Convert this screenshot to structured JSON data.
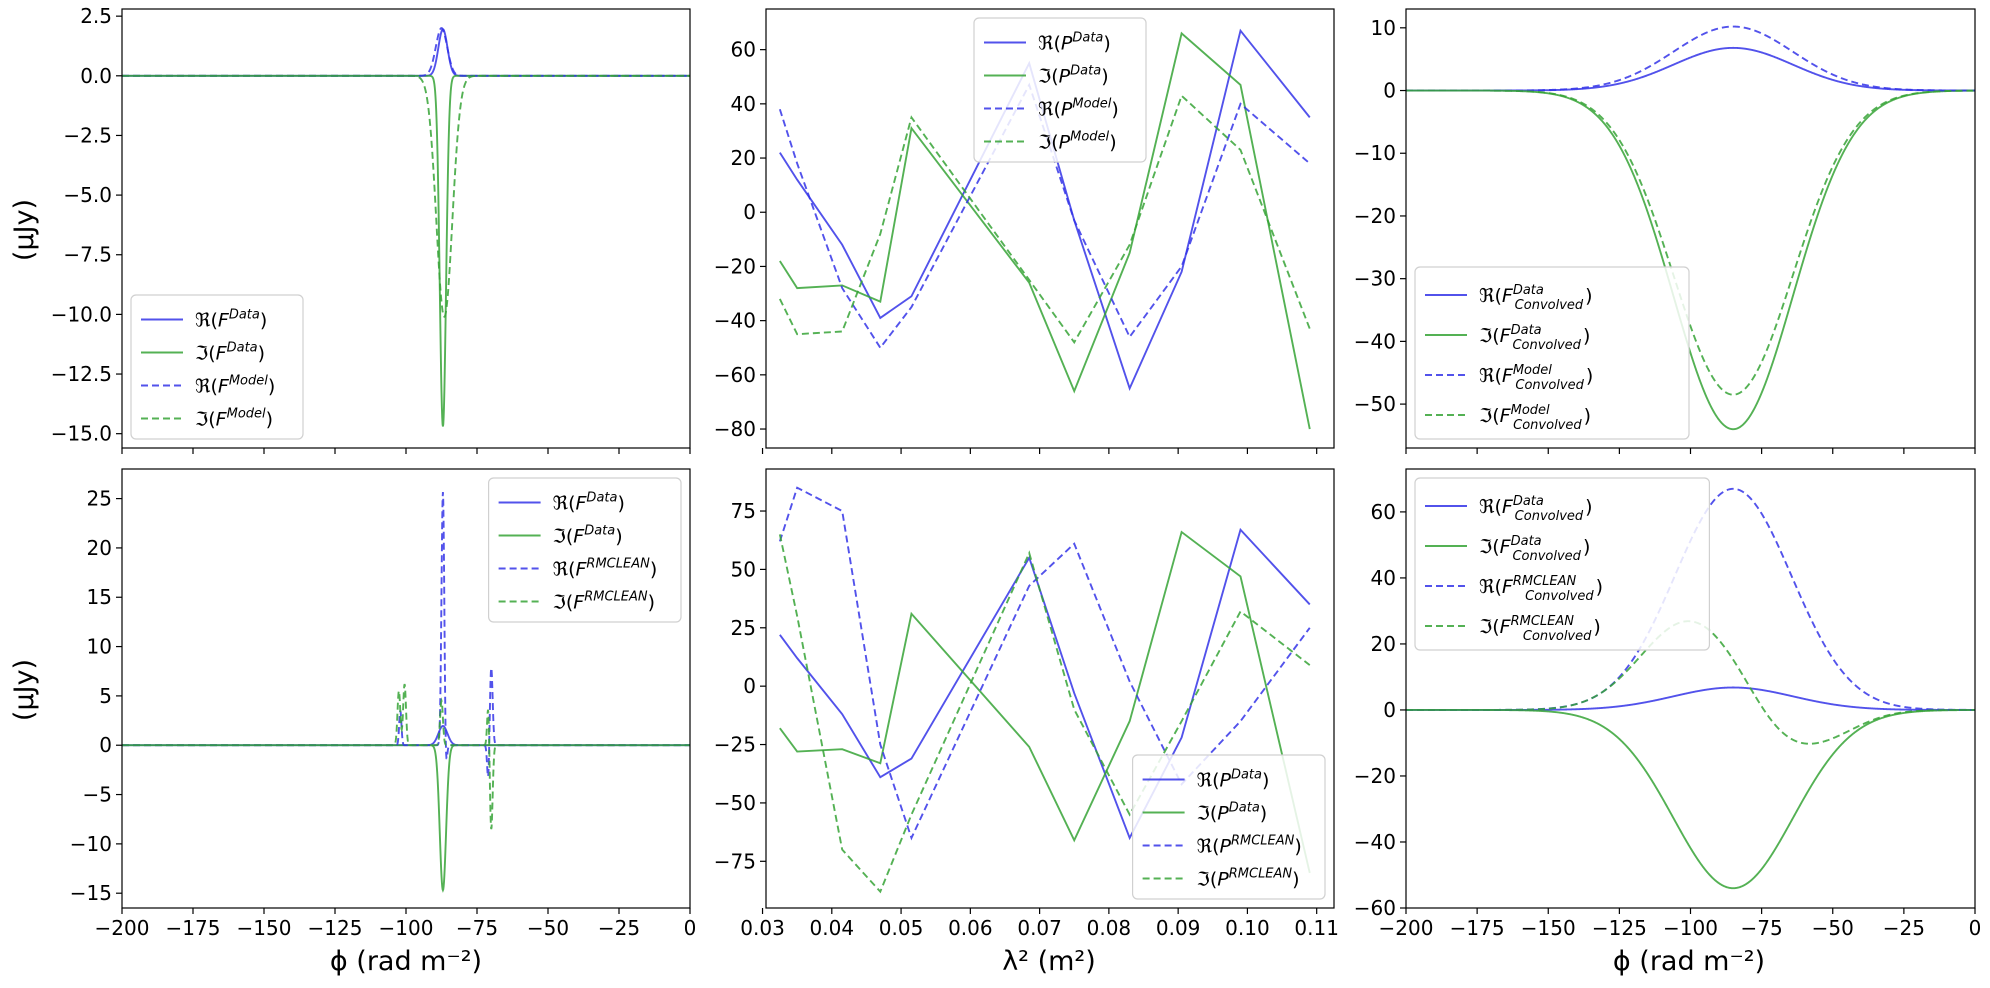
{
  "xlabels": {
    "phi": "ϕ (rad m⁻²)",
    "lambda2": "λ² (m²)"
  },
  "ylabel": "(μJy)",
  "colors": {
    "real": "#3434e8",
    "imag": "#36a336"
  },
  "chart_data": [
    {
      "type": "line",
      "id": "p1",
      "xlim": [
        -200,
        0
      ],
      "ylim": [
        -15.6,
        2.8
      ],
      "xticks": [
        -200,
        -175,
        -150,
        -125,
        -100,
        -75,
        -50,
        -25,
        0
      ],
      "yticks": [
        2.5,
        0,
        -2.5,
        -5,
        -7.5,
        -10,
        -12.5,
        -15
      ],
      "ytick_labels": [
        "2.5",
        "0.0",
        "−2.5",
        "−5.0",
        "−7.5",
        "−10.0",
        "−12.5",
        "−15.0"
      ],
      "legend": "lower-left",
      "series": [
        {
          "name": "ℜ(F^Data)",
          "color": "real",
          "dash": false,
          "peaks": [
            {
              "c": -87,
              "a": 1.95,
              "s": 1.6
            }
          ]
        },
        {
          "name": "ℑ(F^Data)",
          "color": "imag",
          "dash": false,
          "peaks": [
            {
              "c": -87,
              "a": -14.7,
              "s": 1.1
            }
          ]
        },
        {
          "name": "ℜ(F^Model)",
          "color": "real",
          "dash": true,
          "peaks": [
            {
              "c": -87.5,
              "a": 2.0,
              "s": 2.0
            }
          ]
        },
        {
          "name": "ℑ(F^Model)",
          "color": "imag",
          "dash": true,
          "peaks": [
            {
              "c": -86.5,
              "a": -10.1,
              "s": 2.8
            }
          ]
        }
      ]
    },
    {
      "type": "line",
      "id": "p2",
      "xlim": [
        0.0305,
        0.1125
      ],
      "ylim": [
        -87,
        75
      ],
      "xticks": [
        0.03,
        0.04,
        0.05,
        0.06,
        0.07,
        0.08,
        0.09,
        0.1,
        0.11
      ],
      "yticks": [
        60,
        40,
        20,
        0,
        -20,
        -40,
        -60,
        -80
      ],
      "legend": "upper-center",
      "x": [
        0.0325,
        0.035,
        0.0415,
        0.047,
        0.0515,
        0.0685,
        0.075,
        0.083,
        0.0905,
        0.099,
        0.109
      ],
      "series": [
        {
          "name": "ℜ(P^Data)",
          "color": "real",
          "dash": false,
          "values": [
            22,
            12,
            -12,
            -39,
            -31,
            55,
            -3,
            -65,
            -22,
            67,
            35
          ]
        },
        {
          "name": "ℑ(P^Data)",
          "color": "imag",
          "dash": false,
          "values": [
            -18,
            -28,
            -27,
            -33,
            31,
            -26,
            -66,
            -15,
            66,
            47,
            -80
          ]
        },
        {
          "name": "ℜ(P^Model)",
          "color": "real",
          "dash": true,
          "values": [
            38,
            18,
            -28,
            -50,
            -35,
            47,
            -3,
            -46,
            -20,
            40,
            18
          ]
        },
        {
          "name": "ℑ(P^Model)",
          "color": "imag",
          "dash": true,
          "values": [
            -32,
            -45,
            -44,
            -8,
            35,
            -25,
            -48,
            -12,
            43,
            23,
            -43
          ]
        }
      ]
    },
    {
      "type": "line",
      "id": "p3",
      "xlim": [
        -200,
        0
      ],
      "ylim": [
        -57,
        13
      ],
      "xticks": [
        -200,
        -175,
        -150,
        -125,
        -100,
        -75,
        -50,
        -25,
        0
      ],
      "yticks": [
        10,
        0,
        -10,
        -20,
        -30,
        -40,
        -50
      ],
      "legend": "lower-left",
      "series": [
        {
          "name": "ℜ(F^Data_Convolved)",
          "color": "real",
          "dash": false,
          "peaks": [
            {
              "c": -85,
              "a": 6.8,
              "s": 21
            }
          ]
        },
        {
          "name": "ℑ(F^Data_Convolved)",
          "color": "imag",
          "dash": false,
          "peaks": [
            {
              "c": -85,
              "a": -54,
              "s": 21
            }
          ]
        },
        {
          "name": "ℜ(F^Model_Convolved)",
          "color": "real",
          "dash": true,
          "peaks": [
            {
              "c": -85,
              "a": 10.2,
              "s": 21
            }
          ]
        },
        {
          "name": "ℑ(F^Model_Convolved)",
          "color": "imag",
          "dash": true,
          "peaks": [
            {
              "c": -85,
              "a": -48.5,
              "s": 21
            }
          ]
        }
      ]
    },
    {
      "type": "line",
      "id": "p4",
      "xlim": [
        -200,
        0
      ],
      "ylim": [
        -16.5,
        28
      ],
      "xticks": [
        -200,
        -175,
        -150,
        -125,
        -100,
        -75,
        -50,
        -25,
        0
      ],
      "yticks": [
        25,
        20,
        15,
        10,
        5,
        0,
        -5,
        -10,
        -15
      ],
      "legend": "upper-right",
      "series": [
        {
          "name": "ℜ(F^Data)",
          "color": "real",
          "dash": false,
          "peaks": [
            {
              "c": -87,
              "a": 1.95,
              "s": 1.6
            }
          ]
        },
        {
          "name": "ℑ(F^Data)",
          "color": "imag",
          "dash": false,
          "peaks": [
            {
              "c": -87,
              "a": -14.7,
              "s": 1.1
            }
          ]
        },
        {
          "name": "ℜ(F^RMCLEAN)",
          "color": "real",
          "dash": true,
          "peaks": [
            {
              "c": -87,
              "a": 25.8,
              "s": 0.5
            },
            {
              "c": -70,
              "a": 8,
              "s": 0.5
            },
            {
              "c": -102,
              "a": 3.5,
              "s": 0.4
            },
            {
              "c": -86,
              "a": -3,
              "s": 0.4
            },
            {
              "c": -71,
              "a": -4,
              "s": 0.4
            }
          ]
        },
        {
          "name": "ℑ(F^RMCLEAN)",
          "color": "imag",
          "dash": true,
          "peaks": [
            {
              "c": -102.5,
              "a": 5.5,
              "s": 0.5
            },
            {
              "c": -100.5,
              "a": 6.2,
              "s": 0.5
            },
            {
              "c": -87.5,
              "a": 4.5,
              "s": 0.5
            },
            {
              "c": -70,
              "a": -8.7,
              "s": 0.5
            },
            {
              "c": -71,
              "a": 4.5,
              "s": 0.4
            }
          ]
        }
      ]
    },
    {
      "type": "line",
      "id": "p5",
      "xlim": [
        0.0305,
        0.1125
      ],
      "ylim": [
        -95,
        93
      ],
      "xticks": [
        0.03,
        0.04,
        0.05,
        0.06,
        0.07,
        0.08,
        0.09,
        0.1,
        0.11
      ],
      "yticks": [
        75,
        50,
        25,
        0,
        -25,
        -50,
        -75
      ],
      "legend": "lower-right",
      "x": [
        0.0325,
        0.035,
        0.0415,
        0.047,
        0.0515,
        0.0685,
        0.075,
        0.083,
        0.0905,
        0.099,
        0.109
      ],
      "series": [
        {
          "name": "ℜ(P^Data)",
          "color": "real",
          "dash": false,
          "values": [
            22,
            12,
            -12,
            -39,
            -31,
            55,
            -3,
            -65,
            -22,
            67,
            35
          ]
        },
        {
          "name": "ℑ(P^Data)",
          "color": "imag",
          "dash": false,
          "values": [
            -18,
            -28,
            -27,
            -33,
            31,
            -26,
            -66,
            -15,
            66,
            47,
            -80
          ]
        },
        {
          "name": "ℜ(P^RMCLEAN)",
          "color": "real",
          "dash": true,
          "values": [
            62,
            85,
            75,
            -25,
            -65,
            43,
            61,
            2,
            -42,
            -15,
            25
          ]
        },
        {
          "name": "ℑ(P^RMCLEAN)",
          "color": "imag",
          "dash": true,
          "values": [
            65,
            30,
            -70,
            -88,
            -55,
            57,
            -10,
            -55,
            -15,
            32,
            9
          ]
        }
      ]
    },
    {
      "type": "line",
      "id": "p6",
      "xlim": [
        -200,
        0
      ],
      "ylim": [
        -60,
        73
      ],
      "xticks": [
        -200,
        -175,
        -150,
        -125,
        -100,
        -75,
        -50,
        -25,
        0
      ],
      "yticks": [
        60,
        40,
        20,
        0,
        -20,
        -40,
        -60
      ],
      "legend": "upper-left",
      "series": [
        {
          "name": "ℜ(F^Data_Convolved)",
          "color": "real",
          "dash": false,
          "peaks": [
            {
              "c": -85,
              "a": 6.8,
              "s": 21
            }
          ]
        },
        {
          "name": "ℑ(F^Data_Convolved)",
          "color": "imag",
          "dash": false,
          "peaks": [
            {
              "c": -85,
              "a": -54,
              "s": 21
            }
          ]
        },
        {
          "name": "ℜ(F^RMCLEAN_Convolved)",
          "color": "real",
          "dash": true,
          "peaks": [
            {
              "c": -85,
              "a": 67,
              "s": 20.5
            }
          ]
        },
        {
          "name": "ℑ(F^RMCLEAN_Convolved)",
          "color": "imag",
          "dash": true,
          "peaks": [
            {
              "c": -100.5,
              "a": 27,
              "s": 17
            },
            {
              "c": -57,
              "a": -9.5,
              "s": 14
            },
            {
              "c": -70,
              "a": -4,
              "s": 10
            }
          ]
        }
      ]
    }
  ]
}
